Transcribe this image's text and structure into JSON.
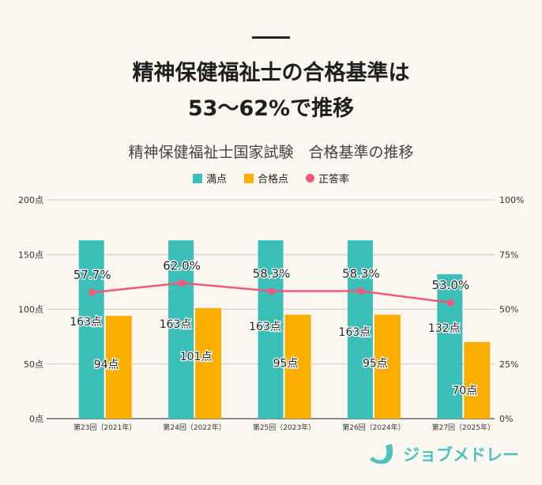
{
  "header": {
    "title_line1": "精神保健福祉士の合格基準は",
    "title_line2": "53～62%で推移"
  },
  "chart_data": {
    "type": "bar",
    "title": "精神保健福祉士国家試験　合格基準の推移",
    "categories": [
      "第23回（2021年）",
      "第24回（2022年）",
      "第25回（2023年）",
      "第26回（2024年）",
      "第27回（2025年）"
    ],
    "series": [
      {
        "name": "満点",
        "type": "bar",
        "color": "#3bbfb8",
        "values": [
          163,
          163,
          163,
          163,
          132
        ],
        "labels": [
          "163点",
          "163点",
          "163点",
          "163点",
          "132点"
        ]
      },
      {
        "name": "合格点",
        "type": "bar",
        "color": "#f9ae00",
        "values": [
          94,
          101,
          95,
          95,
          70
        ],
        "labels": [
          "94点",
          "101点",
          "95点",
          "95点",
          "70点"
        ]
      },
      {
        "name": "正答率",
        "type": "line",
        "axis": "right",
        "color": "#f0597a",
        "values": [
          57.7,
          62.0,
          58.3,
          58.3,
          53.0
        ],
        "labels": [
          "57.7%",
          "62.0%",
          "58.3%",
          "58.3%",
          "53.0%"
        ]
      }
    ],
    "ylim": [
      0,
      200
    ],
    "y2lim": [
      0,
      100
    ],
    "yticks": [
      "0点",
      "50点",
      "100点",
      "150点",
      "200点"
    ],
    "y2ticks": [
      "0%",
      "25%",
      "50%",
      "75%",
      "100%"
    ],
    "grid": true,
    "legend": "top"
  },
  "brand": {
    "name": "ジョブメドレー",
    "color": "#4ec3bd"
  }
}
